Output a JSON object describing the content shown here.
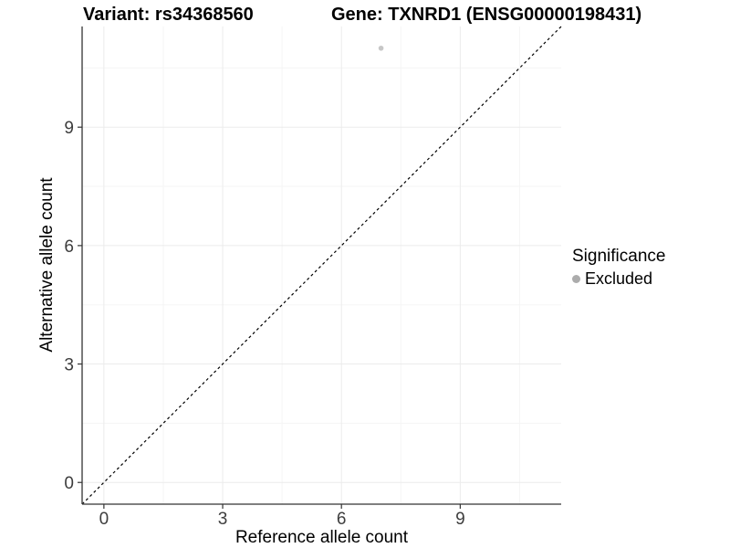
{
  "chart_data": {
    "type": "scatter",
    "title_left": "Variant: rs34368560",
    "title_right": "Gene: TXNRD1 (ENSG00000198431)",
    "xlabel": "Reference allele count",
    "ylabel": "Alternative allele count",
    "xlim": [
      -0.55,
      11.55
    ],
    "ylim": [
      -0.55,
      11.55
    ],
    "x_ticks": [
      0,
      3,
      6,
      9
    ],
    "y_ticks": [
      0,
      3,
      6,
      9
    ],
    "grid": {
      "major": [
        0,
        3,
        6,
        9
      ],
      "minor": [
        1.5,
        4.5,
        7.5,
        10.5
      ],
      "major_color": "#ebebeb",
      "minor_color": "#f5f5f5"
    },
    "reference_line": {
      "style": "dashed",
      "slope": 1,
      "intercept": 0,
      "color": "#000000"
    },
    "series": [
      {
        "name": "Excluded",
        "color": "#c7c7c7",
        "points": [
          {
            "x": 7,
            "y": 11
          }
        ]
      }
    ],
    "legend": {
      "title": "Significance",
      "position": "right",
      "items": [
        {
          "label": "Excluded",
          "color": "#acacac"
        }
      ]
    },
    "axis": {
      "line_color": "#333333",
      "tick_color": "#333333",
      "tick_label_color": "#3d3d3d"
    }
  }
}
